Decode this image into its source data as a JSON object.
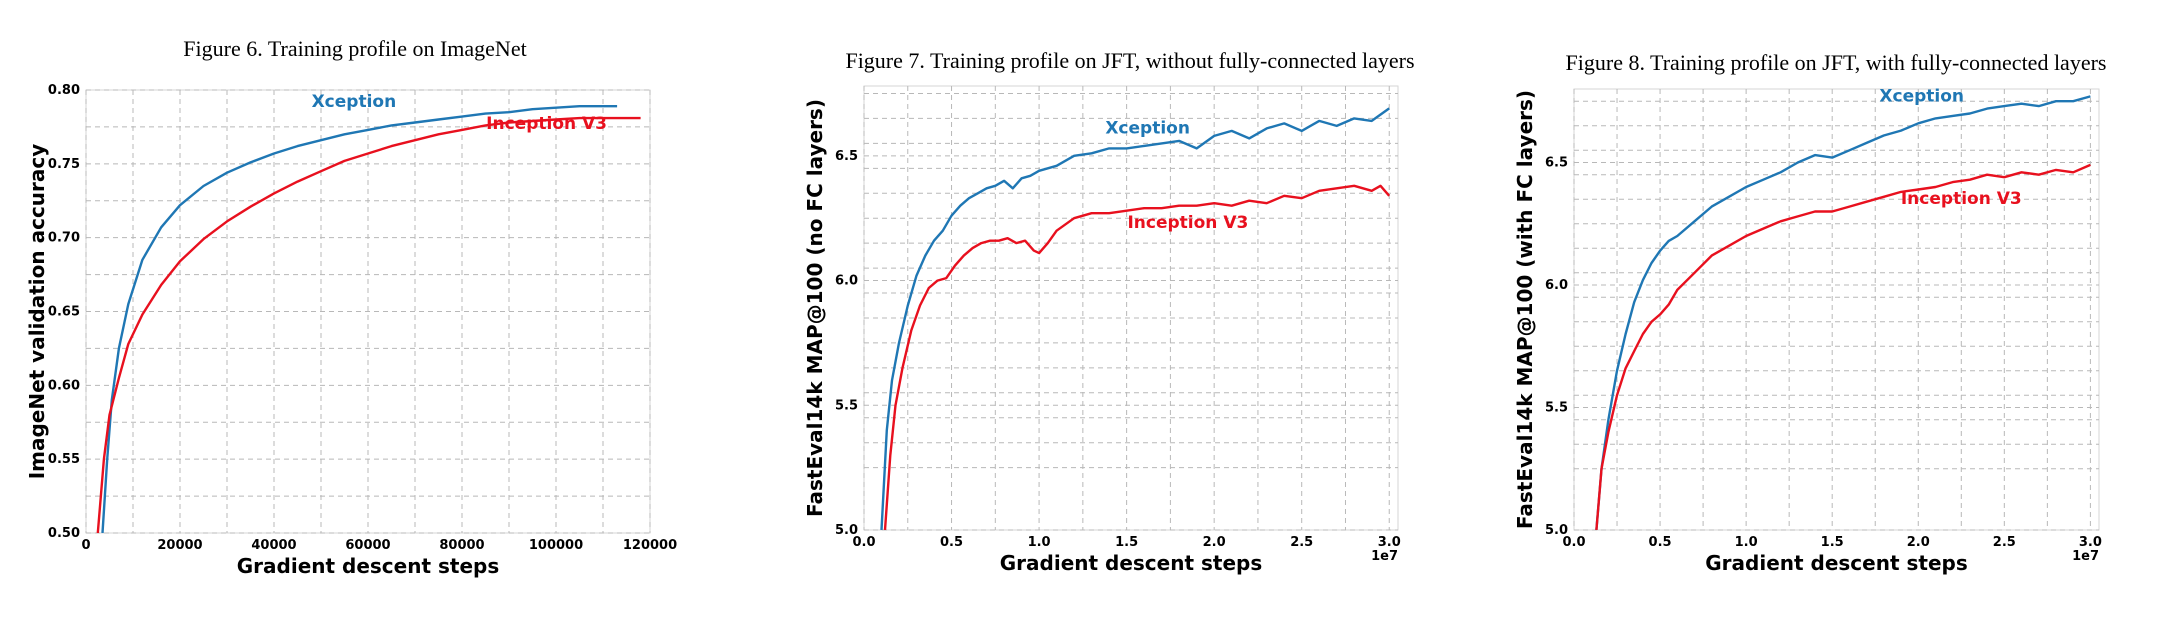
{
  "chart_data": [
    {
      "type": "line",
      "title": "Figure 6. Training profile on ImageNet",
      "xlabel": "Gradient descent steps",
      "ylabel": "ImageNet validation accuracy",
      "xlim": [
        0,
        120000
      ],
      "ylim": [
        0.5,
        0.8
      ],
      "x_exponent": "",
      "xticks": [
        0,
        20000,
        40000,
        60000,
        80000,
        100000,
        120000
      ],
      "xtick_labels": [
        "0",
        "20000",
        "40000",
        "60000",
        "80000",
        "100000",
        "120000"
      ],
      "yticks": [
        0.5,
        0.55,
        0.6,
        0.65,
        0.7,
        0.75,
        0.8
      ],
      "ytick_labels": [
        "0.50",
        "0.55",
        "0.60",
        "0.65",
        "0.70",
        "0.75",
        "0.80"
      ],
      "grid": true,
      "series": [
        {
          "name": "Xception",
          "color": "#1f77b4",
          "label_at": [
            57000,
            0.7885
          ],
          "points": [
            [
              3500,
              0.5
            ],
            [
              4500,
              0.55
            ],
            [
              5500,
              0.59
            ],
            [
              7000,
              0.625
            ],
            [
              9000,
              0.655
            ],
            [
              12000,
              0.685
            ],
            [
              16000,
              0.707
            ],
            [
              20000,
              0.722
            ],
            [
              25000,
              0.735
            ],
            [
              30000,
              0.744
            ],
            [
              35000,
              0.751
            ],
            [
              40000,
              0.757
            ],
            [
              45000,
              0.762
            ],
            [
              50000,
              0.766
            ],
            [
              55000,
              0.77
            ],
            [
              60000,
              0.773
            ],
            [
              65000,
              0.776
            ],
            [
              70000,
              0.778
            ],
            [
              75000,
              0.78
            ],
            [
              80000,
              0.782
            ],
            [
              85000,
              0.784
            ],
            [
              90000,
              0.785
            ],
            [
              95000,
              0.787
            ],
            [
              100000,
              0.788
            ],
            [
              105000,
              0.789
            ],
            [
              110000,
              0.789
            ],
            [
              113000,
              0.789
            ]
          ]
        },
        {
          "name": "Inception V3",
          "color": "#e8101e",
          "label_at": [
            98000,
            0.7735
          ],
          "points": [
            [
              2500,
              0.5
            ],
            [
              3800,
              0.55
            ],
            [
              5000,
              0.58
            ],
            [
              7000,
              0.605
            ],
            [
              9000,
              0.628
            ],
            [
              12000,
              0.648
            ],
            [
              16000,
              0.668
            ],
            [
              20000,
              0.684
            ],
            [
              25000,
              0.699
            ],
            [
              30000,
              0.711
            ],
            [
              35000,
              0.721
            ],
            [
              40000,
              0.73
            ],
            [
              45000,
              0.738
            ],
            [
              50000,
              0.745
            ],
            [
              55000,
              0.752
            ],
            [
              60000,
              0.757
            ],
            [
              65000,
              0.762
            ],
            [
              70000,
              0.766
            ],
            [
              75000,
              0.77
            ],
            [
              80000,
              0.773
            ],
            [
              85000,
              0.776
            ],
            [
              90000,
              0.778
            ],
            [
              95000,
              0.779
            ],
            [
              100000,
              0.78
            ],
            [
              105000,
              0.781
            ],
            [
              110000,
              0.781
            ],
            [
              115000,
              0.781
            ],
            [
              118000,
              0.781
            ]
          ]
        }
      ]
    },
    {
      "type": "line",
      "title": "Figure 7. Training profile on JFT, without fully-connected layers",
      "xlabel": "Gradient descent steps",
      "ylabel": "FastEval14k MAP@100 (no FC layers)",
      "xlim": [
        0,
        30500000
      ],
      "ylim": [
        5.0,
        6.78
      ],
      "x_exponent": "1e7",
      "xticks": [
        0,
        5000000,
        10000000,
        15000000,
        20000000,
        25000000,
        30000000
      ],
      "xtick_labels": [
        "0.0",
        "0.5",
        "1.0",
        "1.5",
        "2.0",
        "2.5",
        "3.0"
      ],
      "yticks": [
        5.0,
        5.5,
        6.0,
        6.5
      ],
      "ytick_labels": [
        "5.0",
        "5.5",
        "6.0",
        "6.5"
      ],
      "grid": true,
      "series": [
        {
          "name": "Xception",
          "color": "#1f77b4",
          "label_at": [
            16200000,
            6.59
          ],
          "points": [
            [
              1000000,
              5.0
            ],
            [
              1300000,
              5.4
            ],
            [
              1600000,
              5.6
            ],
            [
              2000000,
              5.75
            ],
            [
              2500000,
              5.9
            ],
            [
              3000000,
              6.02
            ],
            [
              3500000,
              6.1
            ],
            [
              4000000,
              6.16
            ],
            [
              4500000,
              6.2
            ],
            [
              5000000,
              6.26
            ],
            [
              5500000,
              6.3
            ],
            [
              6000000,
              6.33
            ],
            [
              6500000,
              6.35
            ],
            [
              7000000,
              6.37
            ],
            [
              7500000,
              6.38
            ],
            [
              8000000,
              6.4
            ],
            [
              8500000,
              6.37
            ],
            [
              9000000,
              6.41
            ],
            [
              9500000,
              6.42
            ],
            [
              10000000,
              6.44
            ],
            [
              11000000,
              6.46
            ],
            [
              12000000,
              6.5
            ],
            [
              13000000,
              6.51
            ],
            [
              14000000,
              6.53
            ],
            [
              15000000,
              6.53
            ],
            [
              16000000,
              6.54
            ],
            [
              17000000,
              6.55
            ],
            [
              18000000,
              6.56
            ],
            [
              19000000,
              6.53
            ],
            [
              20000000,
              6.58
            ],
            [
              21000000,
              6.6
            ],
            [
              22000000,
              6.57
            ],
            [
              23000000,
              6.61
            ],
            [
              24000000,
              6.63
            ],
            [
              25000000,
              6.6
            ],
            [
              26000000,
              6.64
            ],
            [
              27000000,
              6.62
            ],
            [
              28000000,
              6.65
            ],
            [
              29000000,
              6.64
            ],
            [
              30000000,
              6.69
            ]
          ]
        },
        {
          "name": "Inception V3",
          "color": "#e8101e",
          "label_at": [
            18500000,
            6.21
          ],
          "points": [
            [
              1200000,
              5.0
            ],
            [
              1500000,
              5.3
            ],
            [
              1800000,
              5.5
            ],
            [
              2200000,
              5.65
            ],
            [
              2700000,
              5.8
            ],
            [
              3200000,
              5.9
            ],
            [
              3700000,
              5.97
            ],
            [
              4200000,
              6.0
            ],
            [
              4700000,
              6.01
            ],
            [
              5200000,
              6.06
            ],
            [
              5700000,
              6.1
            ],
            [
              6200000,
              6.13
            ],
            [
              6700000,
              6.15
            ],
            [
              7200000,
              6.16
            ],
            [
              7700000,
              6.16
            ],
            [
              8200000,
              6.17
            ],
            [
              8700000,
              6.15
            ],
            [
              9200000,
              6.16
            ],
            [
              9700000,
              6.12
            ],
            [
              10000000,
              6.11
            ],
            [
              10500000,
              6.15
            ],
            [
              11000000,
              6.2
            ],
            [
              12000000,
              6.25
            ],
            [
              13000000,
              6.27
            ],
            [
              14000000,
              6.27
            ],
            [
              15000000,
              6.28
            ],
            [
              16000000,
              6.29
            ],
            [
              17000000,
              6.29
            ],
            [
              18000000,
              6.3
            ],
            [
              19000000,
              6.3
            ],
            [
              20000000,
              6.31
            ],
            [
              21000000,
              6.3
            ],
            [
              22000000,
              6.32
            ],
            [
              23000000,
              6.31
            ],
            [
              24000000,
              6.34
            ],
            [
              25000000,
              6.33
            ],
            [
              26000000,
              6.36
            ],
            [
              27000000,
              6.37
            ],
            [
              28000000,
              6.38
            ],
            [
              29000000,
              6.36
            ],
            [
              29500000,
              6.38
            ],
            [
              30000000,
              6.34
            ]
          ]
        }
      ]
    },
    {
      "type": "line",
      "title": "Figure 8. Training profile on JFT, with fully-connected layers",
      "xlabel": "Gradient descent steps",
      "ylabel": "FastEval14k MAP@100 (with FC layers)",
      "xlim": [
        0,
        30500000
      ],
      "ylim": [
        5.0,
        6.8
      ],
      "x_exponent": "1e7",
      "xticks": [
        0,
        5000000,
        10000000,
        15000000,
        20000000,
        25000000,
        30000000
      ],
      "xtick_labels": [
        "0.0",
        "0.5",
        "1.0",
        "1.5",
        "2.0",
        "2.5",
        "3.0"
      ],
      "yticks": [
        5.0,
        5.5,
        6.0,
        6.5
      ],
      "ytick_labels": [
        "5.0",
        "5.5",
        "6.0",
        "6.5"
      ],
      "grid": true,
      "series": [
        {
          "name": "Xception",
          "color": "#1f77b4",
          "label_at": [
            20200000,
            6.75
          ],
          "points": [
            [
              1300000,
              5.0
            ],
            [
              1600000,
              5.25
            ],
            [
              2000000,
              5.45
            ],
            [
              2500000,
              5.65
            ],
            [
              3000000,
              5.8
            ],
            [
              3500000,
              5.93
            ],
            [
              4000000,
              6.02
            ],
            [
              4500000,
              6.09
            ],
            [
              5000000,
              6.14
            ],
            [
              5500000,
              6.18
            ],
            [
              6000000,
              6.2
            ],
            [
              7000000,
              6.26
            ],
            [
              8000000,
              6.32
            ],
            [
              9000000,
              6.36
            ],
            [
              10000000,
              6.4
            ],
            [
              11000000,
              6.43
            ],
            [
              12000000,
              6.46
            ],
            [
              13000000,
              6.5
            ],
            [
              14000000,
              6.53
            ],
            [
              15000000,
              6.52
            ],
            [
              16000000,
              6.55
            ],
            [
              17000000,
              6.58
            ],
            [
              18000000,
              6.61
            ],
            [
              19000000,
              6.63
            ],
            [
              20000000,
              6.66
            ],
            [
              21000000,
              6.68
            ],
            [
              22000000,
              6.69
            ],
            [
              23000000,
              6.7
            ],
            [
              24000000,
              6.72
            ],
            [
              25000000,
              6.73
            ],
            [
              26000000,
              6.74
            ],
            [
              27000000,
              6.73
            ],
            [
              28000000,
              6.75
            ],
            [
              29000000,
              6.75
            ],
            [
              30000000,
              6.77
            ]
          ]
        },
        {
          "name": "Inception V3",
          "color": "#e8101e",
          "label_at": [
            22500000,
            6.33
          ],
          "points": [
            [
              1300000,
              5.0
            ],
            [
              1600000,
              5.25
            ],
            [
              2000000,
              5.4
            ],
            [
              2500000,
              5.55
            ],
            [
              3000000,
              5.66
            ],
            [
              3500000,
              5.73
            ],
            [
              4000000,
              5.8
            ],
            [
              4500000,
              5.85
            ],
            [
              5000000,
              5.88
            ],
            [
              5500000,
              5.92
            ],
            [
              6000000,
              5.98
            ],
            [
              7000000,
              6.05
            ],
            [
              8000000,
              6.12
            ],
            [
              9000000,
              6.16
            ],
            [
              10000000,
              6.2
            ],
            [
              11000000,
              6.23
            ],
            [
              12000000,
              6.26
            ],
            [
              13000000,
              6.28
            ],
            [
              14000000,
              6.3
            ],
            [
              15000000,
              6.3
            ],
            [
              16000000,
              6.32
            ],
            [
              17000000,
              6.34
            ],
            [
              18000000,
              6.36
            ],
            [
              19000000,
              6.38
            ],
            [
              20000000,
              6.39
            ],
            [
              21000000,
              6.4
            ],
            [
              22000000,
              6.42
            ],
            [
              23000000,
              6.43
            ],
            [
              24000000,
              6.45
            ],
            [
              25000000,
              6.44
            ],
            [
              26000000,
              6.46
            ],
            [
              27000000,
              6.45
            ],
            [
              28000000,
              6.47
            ],
            [
              29000000,
              6.46
            ],
            [
              30000000,
              6.49
            ]
          ]
        }
      ]
    }
  ]
}
